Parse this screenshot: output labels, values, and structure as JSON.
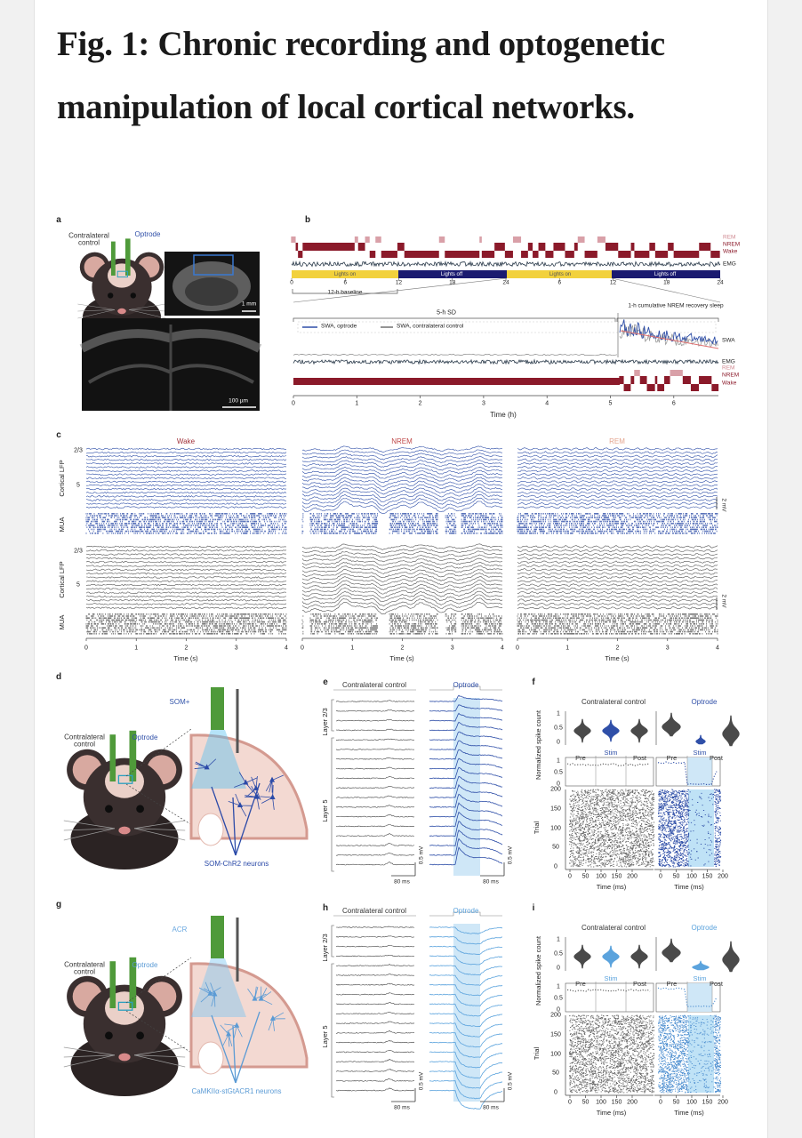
{
  "title": "Fig. 1: Chronic recording and optogenetic manipulation of local cortical networks.",
  "panel_a": {
    "label": "a",
    "contralateral": "Contralateral control",
    "optrode": "Optrode",
    "scale_large": "1 mm",
    "scale_small": "100 µm"
  },
  "panel_b": {
    "label": "b",
    "states": [
      "REM",
      "NREM",
      "Wake"
    ],
    "emg": "EMG",
    "light_bar": [
      "Lights on",
      "Lights off",
      "Lights on",
      "Lights off"
    ],
    "clock_ticks": [
      0,
      6,
      12,
      18,
      24,
      6,
      12,
      18,
      24
    ],
    "baseline": "12-h baseline",
    "sd": "5-h SD",
    "recovery": "1-h cumulative NREM recovery sleep",
    "legend": [
      "SWA, optrode",
      "SWA, contralateral control"
    ],
    "swa": "SWA",
    "time_ticks": [
      0,
      1,
      2,
      3,
      4,
      5,
      6
    ],
    "time_label": "Time (h)"
  },
  "panel_c": {
    "label": "c",
    "states": [
      "Wake",
      "NREM",
      "REM"
    ],
    "layers": [
      "2/3",
      "5"
    ],
    "lfp": "Cortical LFP",
    "mua": "MUA",
    "scale": "2 mV",
    "time_ticks": [
      0,
      1,
      2,
      3,
      4
    ],
    "time_label": "Time (s)"
  },
  "panel_d": {
    "label": "d",
    "opsin": "SOM+",
    "contralateral": "Contralateral control",
    "optrode": "Optrode",
    "neurons": "SOM-ChR2 neurons"
  },
  "panel_e": {
    "label": "e",
    "columns": [
      "Contralateral control",
      "Optrode"
    ],
    "layers": [
      "Layer 2/3",
      "Layer 5"
    ],
    "scale_v": "0.5 mV",
    "scale_t": "80 ms"
  },
  "panel_f": {
    "label": "f",
    "columns": [
      "Contralateral control",
      "Optrode"
    ],
    "spike_label": "Normalized spike count",
    "spike_ticks": [
      1,
      0.5,
      0
    ],
    "phases": [
      "Pre",
      "Stim",
      "Post"
    ],
    "trial_label": "Trial",
    "trial_ticks": [
      200,
      150,
      100,
      50,
      0
    ],
    "time_ticks": [
      0,
      50,
      100,
      150,
      200
    ],
    "time_label": "Time (ms)"
  },
  "panel_g": {
    "label": "g",
    "opsin": "ACR",
    "contralateral": "Contralateral control",
    "optrode": "Optrode",
    "neurons": "CaMKIIα-stGtACR1 neurons"
  },
  "panel_h": {
    "label": "h",
    "columns": [
      "Contralateral control",
      "Optrode"
    ],
    "layers": [
      "Layer 2/3",
      "Layer 5"
    ],
    "scale_v": "0.5 mV",
    "scale_t": "80 ms"
  },
  "panel_i": {
    "label": "i",
    "columns": [
      "Contralateral control",
      "Optrode"
    ],
    "spike_label": "Normalized spike count",
    "spike_ticks": [
      1,
      0.5,
      0
    ],
    "phases": [
      "Pre",
      "Stim",
      "Post"
    ],
    "trial_label": "Trial",
    "trial_ticks": [
      200,
      150,
      100,
      50,
      0
    ],
    "time_ticks": [
      0,
      50,
      100,
      150,
      200
    ],
    "time_label": "Time (ms)"
  }
}
